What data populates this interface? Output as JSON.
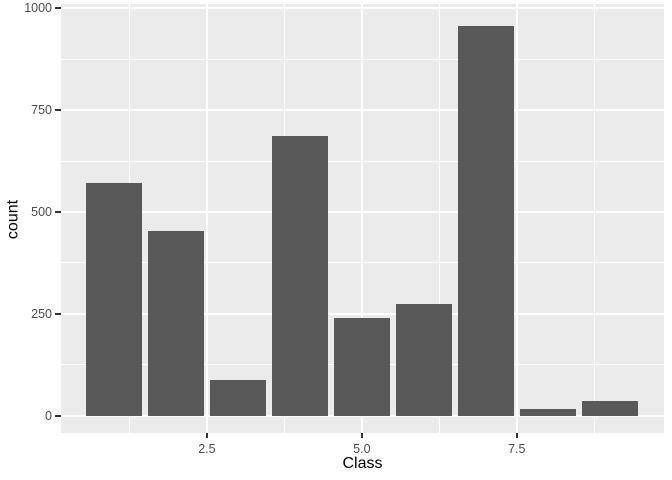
{
  "chart_data": {
    "type": "bar",
    "title": "",
    "xlabel": "Class",
    "ylabel": "count",
    "categories": [
      1,
      2,
      3,
      4,
      5,
      6,
      7,
      8,
      9
    ],
    "values": [
      570,
      453,
      88,
      686,
      240,
      275,
      956,
      17,
      37
    ],
    "bar_width_units": 0.9,
    "xlim": [
      0.145,
      9.875
    ],
    "ylim": [
      -42,
      1010
    ],
    "x_major_ticks": [
      {
        "value": 2.5,
        "label": "2.5"
      },
      {
        "value": 5.0,
        "label": "5.0"
      },
      {
        "value": 7.5,
        "label": "7.5"
      }
    ],
    "y_major_ticks": [
      {
        "value": 0,
        "label": "0"
      },
      {
        "value": 250,
        "label": "250"
      },
      {
        "value": 500,
        "label": "500"
      },
      {
        "value": 750,
        "label": "750"
      },
      {
        "value": 1000,
        "label": "1000"
      }
    ],
    "x_minor_ticks": [
      1.25,
      3.75,
      6.25,
      8.75
    ],
    "y_minor_ticks": [
      125,
      375,
      625,
      875
    ],
    "grid": "major-and-minor",
    "legend": "none",
    "theme": "ggplot2-grey",
    "colors": {
      "bar_fill": "#595959",
      "panel_background": "#EBEBEB",
      "grid_major": "#FFFFFF",
      "grid_minor": "#FFFFFF",
      "axis_text": "#4D4D4D",
      "axis_title": "#000000",
      "tick_mark": "#333333",
      "figure_background": "#FFFFFF"
    }
  }
}
